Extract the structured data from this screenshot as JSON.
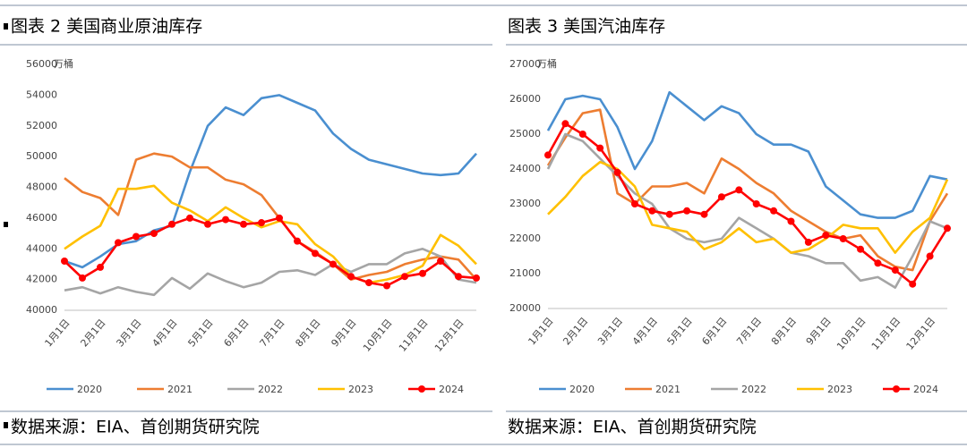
{
  "chart_data": [
    {
      "type": "line",
      "title": "图表 2 美国商业原油库存",
      "y_label": "万桶",
      "source": "数据来源：EIA、首创期货研究院",
      "categories": [
        "1月1日",
        null,
        "2月1日",
        null,
        "3月1日",
        null,
        "4月1日",
        null,
        "5月1日",
        null,
        "6月1日",
        null,
        "7月1日",
        null,
        "8月1日",
        null,
        "9月1日",
        null,
        "10月1日",
        null,
        "11月1日",
        null,
        "12月1日",
        null
      ],
      "ylim": [
        40000,
        56000
      ],
      "yticks": [
        40000,
        42000,
        44000,
        46000,
        48000,
        50000,
        52000,
        54000,
        56000
      ],
      "grid": false,
      "series": [
        {
          "name": "2020",
          "color": "#4a8fd0",
          "values": [
            43200,
            42800,
            43500,
            44300,
            44500,
            45200,
            45500,
            49000,
            52000,
            53200,
            52700,
            53800,
            54000,
            53500,
            53000,
            51500,
            50500,
            49800,
            49500,
            49200,
            48900,
            48800,
            48900,
            50200
          ]
        },
        {
          "name": "2021",
          "color": "#ed7d31",
          "values": [
            48600,
            47700,
            47300,
            46200,
            49800,
            50200,
            50000,
            49300,
            49300,
            48500,
            48200,
            47500,
            46000,
            44500,
            43800,
            43000,
            42000,
            42300,
            42500,
            43000,
            43300,
            43500,
            43300,
            42000
          ]
        },
        {
          "name": "2022",
          "color": "#a5a5a5",
          "values": [
            41300,
            41500,
            41100,
            41500,
            41200,
            41000,
            42100,
            41400,
            42400,
            41900,
            41500,
            41800,
            42500,
            42600,
            42300,
            43000,
            42500,
            43000,
            43000,
            43700,
            44000,
            43500,
            42000,
            41800
          ]
        },
        {
          "name": "2023",
          "color": "#ffc000",
          "values": [
            44000,
            44800,
            45500,
            47900,
            47900,
            48100,
            47000,
            46500,
            45800,
            46700,
            46000,
            45400,
            45800,
            45600,
            44300,
            43500,
            42200,
            41800,
            42000,
            42300,
            42900,
            44900,
            44200,
            43000
          ]
        },
        {
          "name": "2024",
          "color": "#ff0000",
          "markers": true,
          "values": [
            43200,
            42100,
            42800,
            44400,
            44800,
            45000,
            45600,
            46000,
            45600,
            45900,
            45600,
            45700,
            46000,
            44500,
            43700,
            43000,
            42200,
            41800,
            41600,
            42200,
            42400,
            43200,
            42200,
            42100
          ]
        }
      ]
    },
    {
      "type": "line",
      "title": "图表 3 美国汽油库存",
      "y_label": "万桶",
      "source": "数据来源：EIA、首创期货研究院",
      "categories": [
        "1月1日",
        null,
        "2月1日",
        null,
        "3月1日",
        null,
        "4月1日",
        null,
        "5月1日",
        null,
        "6月1日",
        null,
        "7月1日",
        null,
        "8月1日",
        null,
        "9月1日",
        null,
        "10月1日",
        null,
        "11月1日",
        null,
        "12月1日",
        null
      ],
      "ylim": [
        20000,
        27000
      ],
      "yticks": [
        20000,
        21000,
        22000,
        23000,
        24000,
        25000,
        26000,
        27000
      ],
      "grid": false,
      "series": [
        {
          "name": "2020",
          "color": "#4a8fd0",
          "values": [
            25100,
            26000,
            26100,
            26000,
            25200,
            24000,
            24800,
            26200,
            25800,
            25400,
            25800,
            25600,
            25000,
            24700,
            24700,
            24500,
            23500,
            23100,
            22700,
            22600,
            22600,
            22800,
            23800,
            23700
          ]
        },
        {
          "name": "2021",
          "color": "#ed7d31",
          "values": [
            24100,
            24900,
            25600,
            25700,
            23300,
            23000,
            23500,
            23500,
            23600,
            23300,
            24300,
            24000,
            23600,
            23300,
            22800,
            22500,
            22200,
            22000,
            22100,
            21500,
            21200,
            21100,
            22500,
            23300
          ]
        },
        {
          "name": "2022",
          "color": "#a5a5a5",
          "values": [
            24000,
            25000,
            24800,
            24300,
            23800,
            23300,
            23000,
            22300,
            22000,
            21900,
            22000,
            22600,
            22300,
            22000,
            21600,
            21500,
            21300,
            21300,
            20800,
            20900,
            20600,
            21500,
            22500,
            22300
          ]
        },
        {
          "name": "2023",
          "color": "#ffc000",
          "values": [
            22700,
            23200,
            23800,
            24200,
            24000,
            23500,
            22400,
            22300,
            22200,
            21700,
            21900,
            22300,
            21900,
            22000,
            21600,
            21700,
            22000,
            22400,
            22300,
            22300,
            21600,
            22200,
            22600,
            23700
          ]
        },
        {
          "name": "2024",
          "color": "#ff0000",
          "markers": true,
          "values": [
            24400,
            25300,
            25000,
            24600,
            23900,
            23000,
            22800,
            22700,
            22800,
            22700,
            23200,
            23400,
            23000,
            22800,
            22500,
            21900,
            22100,
            22000,
            21700,
            21300,
            21100,
            20700,
            21500,
            22300
          ]
        }
      ]
    }
  ]
}
